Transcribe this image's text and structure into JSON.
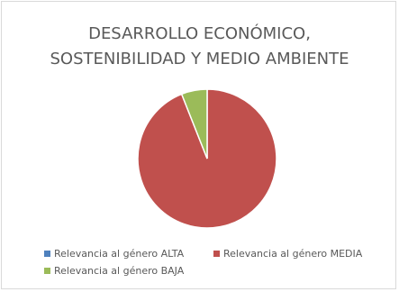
{
  "chart_data": {
    "type": "pie",
    "title_lines": [
      "DESARROLLO ECONÓMICO,",
      "SOSTENIBILIDAD Y MEDIO AMBIENTE"
    ],
    "categories": [
      "Relevancia al género ALTA",
      "Relevancia al género MEDIA",
      "Relevancia al género BAJA"
    ],
    "values": [
      0,
      94,
      6
    ],
    "colors": [
      "#4f81bd",
      "#c0504d",
      "#9bbb59"
    ],
    "legend_position": "bottom",
    "border_color": "#ffffff"
  }
}
